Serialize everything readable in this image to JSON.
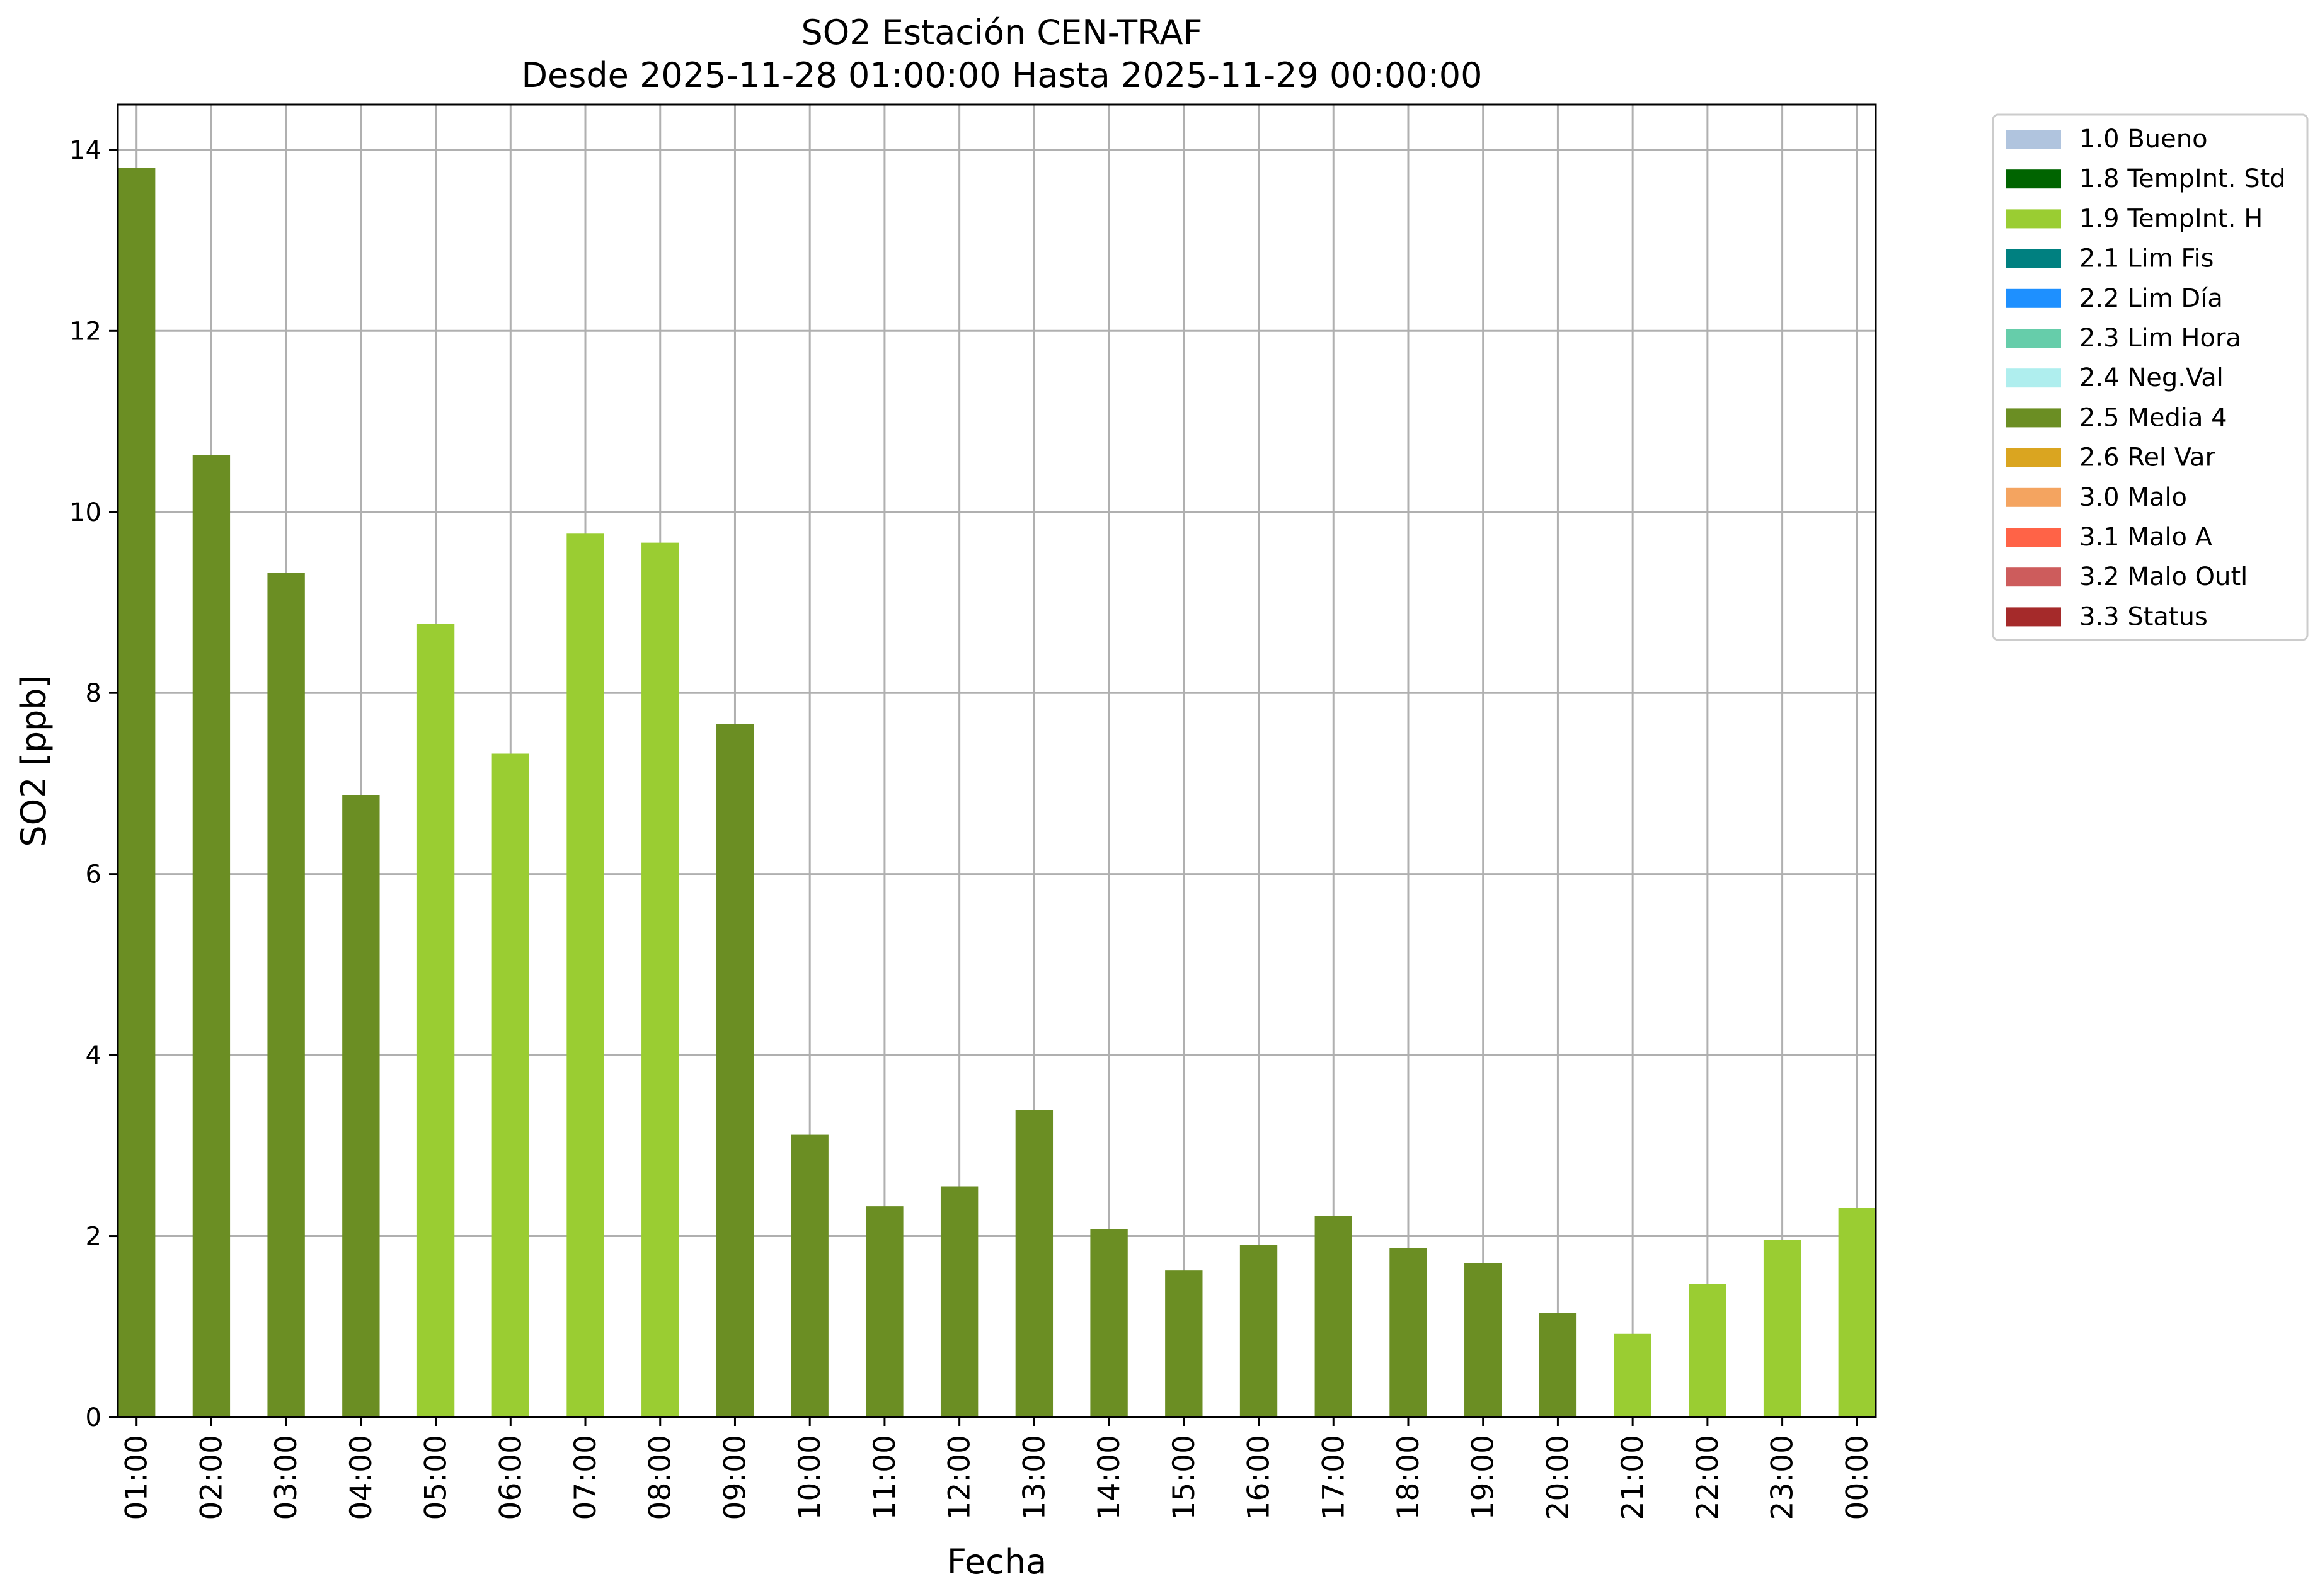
{
  "chart_data": {
    "type": "bar",
    "title": "SO2 Estación CEN-TRAF",
    "subtitle": "Desde 2025-11-28 01:00:00 Hasta 2025-11-29 00:00:00",
    "xlabel": "Fecha",
    "ylabel": "SO2 [ppb]",
    "ylim": [
      0,
      14.5
    ],
    "yticks": [
      0,
      2,
      4,
      6,
      8,
      10,
      12,
      14
    ],
    "grid": true,
    "legend_position": "outside-right",
    "categories": [
      "01:00",
      "02:00",
      "03:00",
      "04:00",
      "05:00",
      "06:00",
      "07:00",
      "08:00",
      "09:00",
      "10:00",
      "11:00",
      "12:00",
      "13:00",
      "14:00",
      "15:00",
      "16:00",
      "17:00",
      "18:00",
      "19:00",
      "20:00",
      "21:00",
      "22:00",
      "23:00",
      "00:00"
    ],
    "values": [
      13.8,
      10.63,
      9.33,
      6.87,
      8.76,
      7.33,
      9.76,
      9.66,
      7.66,
      3.12,
      2.33,
      2.55,
      3.39,
      2.08,
      1.62,
      1.9,
      2.22,
      1.87,
      1.7,
      1.15,
      0.92,
      1.47,
      1.96,
      2.31
    ],
    "flags": [
      "2.5 Media 4",
      "2.5 Media 4",
      "2.5 Media 4",
      "2.5 Media 4",
      "1.9 TempInt. H",
      "1.9 TempInt. H",
      "1.9 TempInt. H",
      "1.9 TempInt. H",
      "2.5 Media 4",
      "2.5 Media 4",
      "2.5 Media 4",
      "2.5 Media 4",
      "2.5 Media 4",
      "2.5 Media 4",
      "2.5 Media 4",
      "2.5 Media 4",
      "2.5 Media 4",
      "2.5 Media 4",
      "2.5 Media 4",
      "2.5 Media 4",
      "1.9 TempInt. H",
      "1.9 TempInt. H",
      "1.9 TempInt. H",
      "1.9 TempInt. H"
    ],
    "legend": [
      {
        "label": "1.0 Bueno",
        "color": "#b0c4de"
      },
      {
        "label": "1.8 TempInt. Std",
        "color": "#006400"
      },
      {
        "label": "1.9 TempInt. H",
        "color": "#9acd32"
      },
      {
        "label": "2.1 Lim Fis",
        "color": "#008080"
      },
      {
        "label": "2.2 Lim Día",
        "color": "#1e90ff"
      },
      {
        "label": "2.3 Lim Hora",
        "color": "#66cdaa"
      },
      {
        "label": "2.4 Neg.Val",
        "color": "#afeeee"
      },
      {
        "label": "2.5 Media 4",
        "color": "#6b8e23"
      },
      {
        "label": "2.6 Rel Var",
        "color": "#daa520"
      },
      {
        "label": "3.0 Malo",
        "color": "#f4a460"
      },
      {
        "label": "3.1 Malo A",
        "color": "#ff6347"
      },
      {
        "label": "3.2 Malo Outl",
        "color": "#cd5c5c"
      },
      {
        "label": "3.3 Status",
        "color": "#a52a2a"
      }
    ]
  }
}
